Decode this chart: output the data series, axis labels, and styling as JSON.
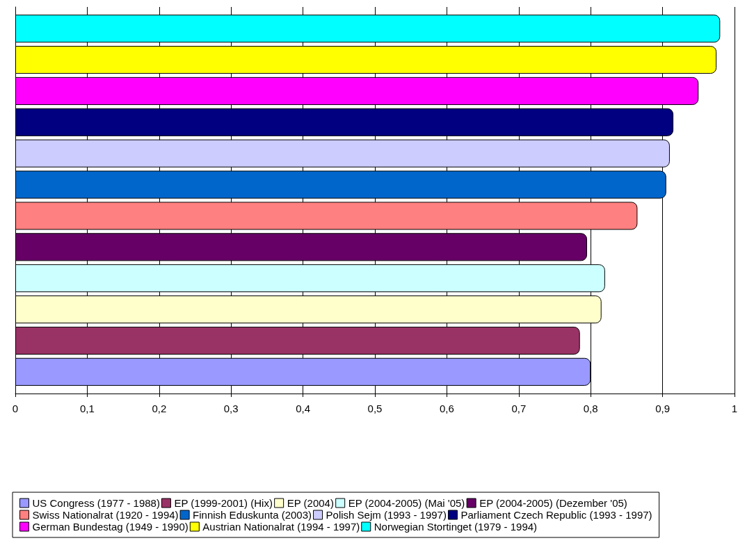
{
  "chart_data": {
    "type": "bar",
    "orientation": "horizontal",
    "categories": [
      null
    ],
    "series": [
      {
        "name": "US Congress (1977 - 1988)",
        "color": "#9999ff",
        "values": [
          0.8
        ]
      },
      {
        "name": "EP (1999-2001) (Hix)",
        "color": "#993366",
        "values": [
          0.785
        ]
      },
      {
        "name": "EP (2004)",
        "color": "#ffffcc",
        "values": [
          0.815
        ]
      },
      {
        "name": "EP (2004-2005) (Mai '05)",
        "color": "#ccffff",
        "values": [
          0.82
        ]
      },
      {
        "name": "EP (2004-2005) (Dezember '05)",
        "color": "#660066",
        "values": [
          0.795
        ]
      },
      {
        "name": "Swiss Nationalrat (1920 - 1994)",
        "color": "#ff8080",
        "values": [
          0.865
        ]
      },
      {
        "name": "Finnish Eduskunta (2003)",
        "color": "#0066cc",
        "values": [
          0.905
        ]
      },
      {
        "name": "Polish Sejm (1993 - 1997)",
        "color": "#ccccff",
        "values": [
          0.91
        ]
      },
      {
        "name": "Parliament Czech Republic (1993 - 1997)",
        "color": "#000080",
        "values": [
          0.915
        ]
      },
      {
        "name": "German Bundestag (1949 - 1990)",
        "color": "#ff00ff",
        "values": [
          0.95
        ]
      },
      {
        "name": "Austrian Nationalrat (1994 - 1997)",
        "color": "#ffff00",
        "values": [
          0.975
        ]
      },
      {
        "name": "Norwegian Stortinget (1979 - 1994)",
        "color": "#00ffff",
        "values": [
          0.98
        ]
      }
    ],
    "xlim": [
      0,
      1
    ],
    "xticks": [
      0,
      {
        "value": 0.1,
        "label": "0,1"
      },
      {
        "value": 0.2,
        "label": "0,2"
      },
      {
        "value": 0.3,
        "label": "0,3"
      },
      {
        "value": 0.4,
        "label": "0,4"
      },
      {
        "value": 0.5,
        "label": "0,5"
      },
      {
        "value": 0.6,
        "label": "0,6"
      },
      {
        "value": 0.7,
        "label": "0,7"
      },
      {
        "value": 0.8,
        "label": "0,8"
      },
      {
        "value": 0.9,
        "label": "0,9"
      },
      1
    ],
    "grid": "x",
    "legend": "bottom"
  }
}
